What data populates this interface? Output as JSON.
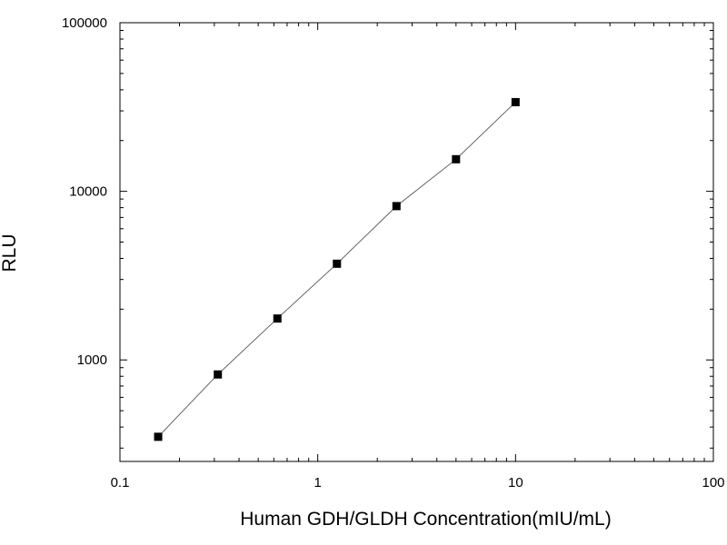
{
  "chart_data": {
    "type": "scatter",
    "title": "",
    "xlabel": "Human GDH/GLDH Concentration(mIU/mL)",
    "ylabel": "RLU",
    "x_scale": "log",
    "y_scale": "log",
    "xlim": [
      0.1,
      100
    ],
    "ylim": [
      250,
      100000
    ],
    "x_ticks": [
      0.1,
      1,
      10,
      100
    ],
    "x_tick_labels": [
      "0.1",
      "1",
      "10",
      "100"
    ],
    "y_ticks": [
      1000,
      10000,
      100000
    ],
    "y_tick_labels": [
      "1000",
      "10000",
      "100000"
    ],
    "grid": false,
    "legend": "none",
    "series": [
      {
        "x": [
          0.156,
          0.3125,
          0.625,
          1.25,
          2.5,
          5,
          10
        ],
        "y": [
          350,
          820,
          1760,
          3720,
          8170,
          15500,
          33800
        ],
        "marker": "square",
        "line": true
      }
    ],
    "colors": {
      "marker": "#000000",
      "line": "#555555",
      "axis": "#000000"
    }
  }
}
